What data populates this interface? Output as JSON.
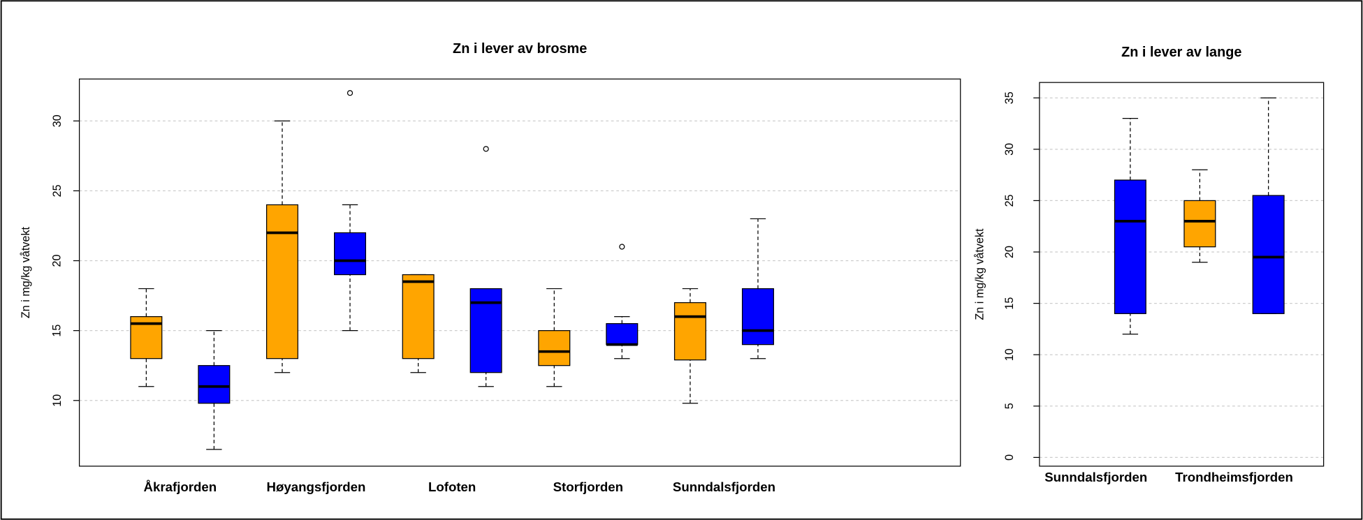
{
  "chart_data": [
    {
      "type": "box",
      "title": "Zn i lever av brosme",
      "y_label": "Zn i mg/kg våtvekt",
      "categories": [
        "Åkrafjorden",
        "Høyangsfjorden",
        "Lofoten",
        "Storfjorden",
        "Sunndalsfjorden"
      ],
      "ylim": [
        5.3,
        33.0
      ],
      "yticks": [
        10,
        15,
        20,
        25,
        30
      ],
      "grid": true,
      "series": [
        {
          "color": "#FFA500",
          "boxes": [
            {
              "low": 11,
              "q1": 13,
              "median": 15.5,
              "q3": 16,
              "high": 18,
              "outliers": []
            },
            {
              "low": 12,
              "q1": 13,
              "median": 22,
              "q3": 24,
              "high": 30,
              "outliers": []
            },
            {
              "low": 12,
              "q1": 13,
              "median": 18.5,
              "q3": 19,
              "high": 19,
              "outliers": []
            },
            {
              "low": 11,
              "q1": 12.5,
              "median": 13.5,
              "q3": 15,
              "high": 18,
              "outliers": []
            },
            {
              "low": 9.8,
              "q1": 12.9,
              "median": 16,
              "q3": 17,
              "high": 18,
              "outliers": []
            }
          ]
        },
        {
          "color": "#0000FF",
          "boxes": [
            {
              "low": 6.5,
              "q1": 9.8,
              "median": 11,
              "q3": 12.5,
              "high": 15,
              "outliers": []
            },
            {
              "low": 15,
              "q1": 19,
              "median": 20,
              "q3": 22,
              "high": 24,
              "outliers": [
                32
              ]
            },
            {
              "low": 11,
              "q1": 12,
              "median": 17,
              "q3": 18,
              "high": 18,
              "outliers": [
                28
              ]
            },
            {
              "low": 13,
              "q1": 14,
              "median": 14,
              "q3": 15.5,
              "high": 16,
              "outliers": [
                21
              ]
            },
            {
              "low": 13,
              "q1": 14,
              "median": 15,
              "q3": 18,
              "high": 23,
              "outliers": []
            }
          ]
        }
      ]
    },
    {
      "type": "box",
      "title": "Zn i lever av lange",
      "y_label": "Zn i mg/kg våtvekt",
      "categories": [
        "Sunndalsfjorden",
        "Trondheimsfjorden"
      ],
      "ylim": [
        -0.85,
        36.5
      ],
      "yticks": [
        0,
        5,
        10,
        15,
        20,
        25,
        30,
        35
      ],
      "grid": true,
      "series": [
        {
          "color": "#FFA500",
          "boxes": [
            null,
            {
              "low": 19,
              "q1": 20.5,
              "median": 23,
              "q3": 25,
              "high": 28,
              "outliers": []
            }
          ]
        },
        {
          "color": "#0000FF",
          "boxes": [
            {
              "low": 12,
              "q1": 14,
              "median": 23,
              "q3": 27,
              "high": 33,
              "outliers": []
            },
            {
              "low": 14,
              "q1": 14,
              "median": 19.5,
              "q3": 25.5,
              "high": 35,
              "outliers": []
            }
          ]
        }
      ]
    }
  ]
}
